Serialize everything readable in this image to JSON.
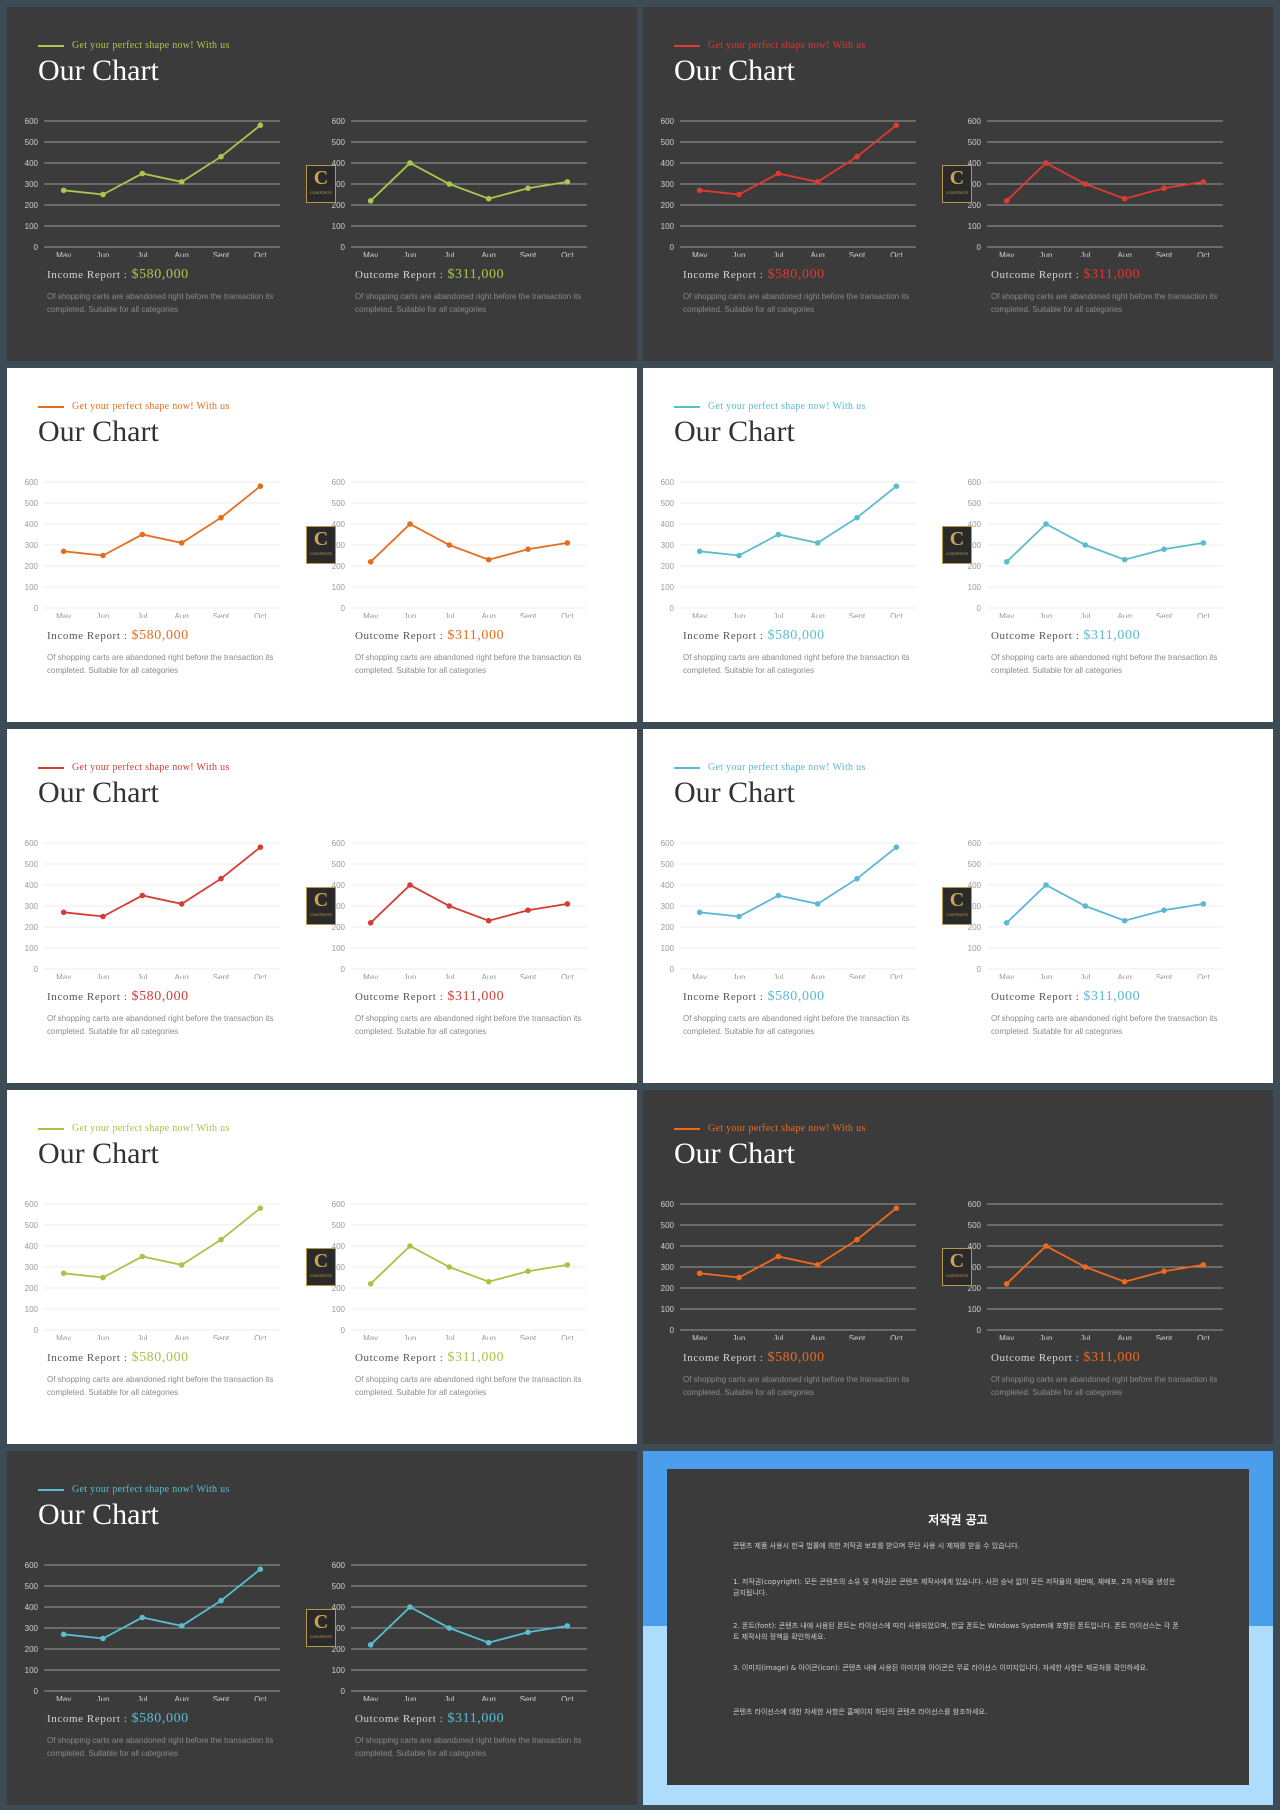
{
  "slides": [
    {
      "theme": "dark",
      "accent": "#a8c94e",
      "tagline": "Get your perfect shape now! With us",
      "title": "Our Chart",
      "income_label": "Income Report :",
      "income_value": "$580,000",
      "outcome_label": "Outcome Report :",
      "outcome_value": "$311,000",
      "description": "Of shopping carts are abandoned right before the transaction its completed. Suitable for all categories"
    },
    {
      "theme": "dark",
      "accent": "#e03a32",
      "tagline": "Get your perfect shape now! With us",
      "title": "Our Chart",
      "income_label": "Income Report :",
      "income_value": "$580,000",
      "outcome_label": "Outcome Report :",
      "outcome_value": "$311,000",
      "description": "Of shopping carts are abandoned right before the transaction its completed. Suitable for all categories"
    },
    {
      "theme": "light",
      "accent": "#e56d1f",
      "tagline": "Get your perfect shape now! With us",
      "title": "Our Chart",
      "income_label": "Income Report :",
      "income_value": "$580,000",
      "outcome_label": "Outcome Report :",
      "outcome_value": "$311,000",
      "description": "Of shopping carts are abandoned right before the transaction its completed. Suitable for all categories"
    },
    {
      "theme": "light",
      "accent": "#5bbccb",
      "tagline": "Get your perfect shape now! With us",
      "title": "Our Chart",
      "income_label": "Income Report :",
      "income_value": "$580,000",
      "outcome_label": "Outcome Report :",
      "outcome_value": "$311,000",
      "description": "Of shopping carts are abandoned right before the transaction its completed. Suitable for all categories"
    },
    {
      "theme": "light",
      "accent": "#d43c34",
      "tagline": "Get your perfect shape now! With us",
      "title": "Our Chart",
      "income_label": "Income Report :",
      "income_value": "$580,000",
      "outcome_label": "Outcome Report :",
      "outcome_value": "$311,000",
      "description": "Of shopping carts are abandoned right before the transaction its completed. Suitable for all categories"
    },
    {
      "theme": "light",
      "accent": "#5bb8d4",
      "tagline": "Get your perfect shape now! With us",
      "title": "Our Chart",
      "income_label": "Income Report :",
      "income_value": "$580,000",
      "outcome_label": "Outcome Report :",
      "outcome_value": "$311,000",
      "description": "Of shopping carts are abandoned right before the transaction its completed. Suitable for all categories"
    },
    {
      "theme": "light",
      "accent": "#a6c445",
      "tagline": "Get your perfect shape now! With us",
      "title": "Our Chart",
      "income_label": "Income Report :",
      "income_value": "$580,000",
      "outcome_label": "Outcome Report :",
      "outcome_value": "$311,000",
      "description": "Of shopping carts are abandoned right before the transaction its completed. Suitable for all categories"
    },
    {
      "theme": "dark",
      "accent": "#ef6a1c",
      "tagline": "Get your perfect shape now! With us",
      "title": "Our Chart",
      "income_label": "Income Report :",
      "income_value": "$580,000",
      "outcome_label": "Outcome Report :",
      "outcome_value": "$311,000",
      "description": "Of shopping carts are abandoned right before the transaction its completed. Suitable for all categories"
    },
    {
      "theme": "dark",
      "accent": "#58bfd2",
      "tagline": "Get your perfect shape now! With us",
      "title": "Our Chart",
      "income_label": "Income Report :",
      "income_value": "$580,000",
      "outcome_label": "Outcome Report :",
      "outcome_value": "$311,000",
      "description": "Of shopping carts are abandoned right before the transaction its completed. Suitable for all categories"
    }
  ],
  "logo": {
    "letter": "C",
    "sub": "CONTENTS"
  },
  "chart_data": [
    {
      "type": "line",
      "role": "income",
      "categories": [
        "May",
        "Jun",
        "Jul",
        "Aug",
        "Sept",
        "Oct"
      ],
      "values": [
        270,
        250,
        350,
        310,
        430,
        580
      ],
      "ylim": [
        0,
        600
      ],
      "yticks": [
        0,
        100,
        200,
        300,
        400,
        500,
        600
      ],
      "grid": true
    },
    {
      "type": "line",
      "role": "outcome",
      "categories": [
        "May",
        "Jun",
        "Jul",
        "Aug",
        "Sept",
        "Oct"
      ],
      "values": [
        220,
        400,
        300,
        230,
        280,
        310
      ],
      "ylim": [
        0,
        600
      ],
      "yticks": [
        0,
        100,
        200,
        300,
        400,
        500,
        600
      ],
      "grid": true
    }
  ],
  "notice": {
    "title": "저작권 공고",
    "paragraphs": [
      "콘텐츠 제품 사용시 한국 법률에 의한 저작권 보호를 받으며 무단 사용 시 제재를 받을 수 있습니다.",
      "1. 저작권(copyright): 모든 콘텐츠의 소유 및 저작권은 콘텐츠 제작사에게 있습니다. 사전 승낙 없이 모든 저작물의 재판매, 재배포, 2차 저작물 생성은 금지됩니다.",
      "2. 폰트(font): 콘텐츠 내에 사용된 폰트는 라이선스에 따라 사용되었으며, 한글 폰트는 Windows System에 포함된 폰트입니다. 폰트 라이선스는 각 폰트 제작사의 정책을 확인하세요.",
      "3. 이미지(image) & 아이콘(icon): 콘텐츠 내에 사용된 이미지와 아이콘은 무료 라이선스 이미지입니다. 자세한 사항은 제공처를 확인하세요.",
      "콘텐츠 라이선스에 대한 자세한 사항은 홈페이지 하단의 콘텐츠 라이선스를 참조하세요."
    ]
  }
}
